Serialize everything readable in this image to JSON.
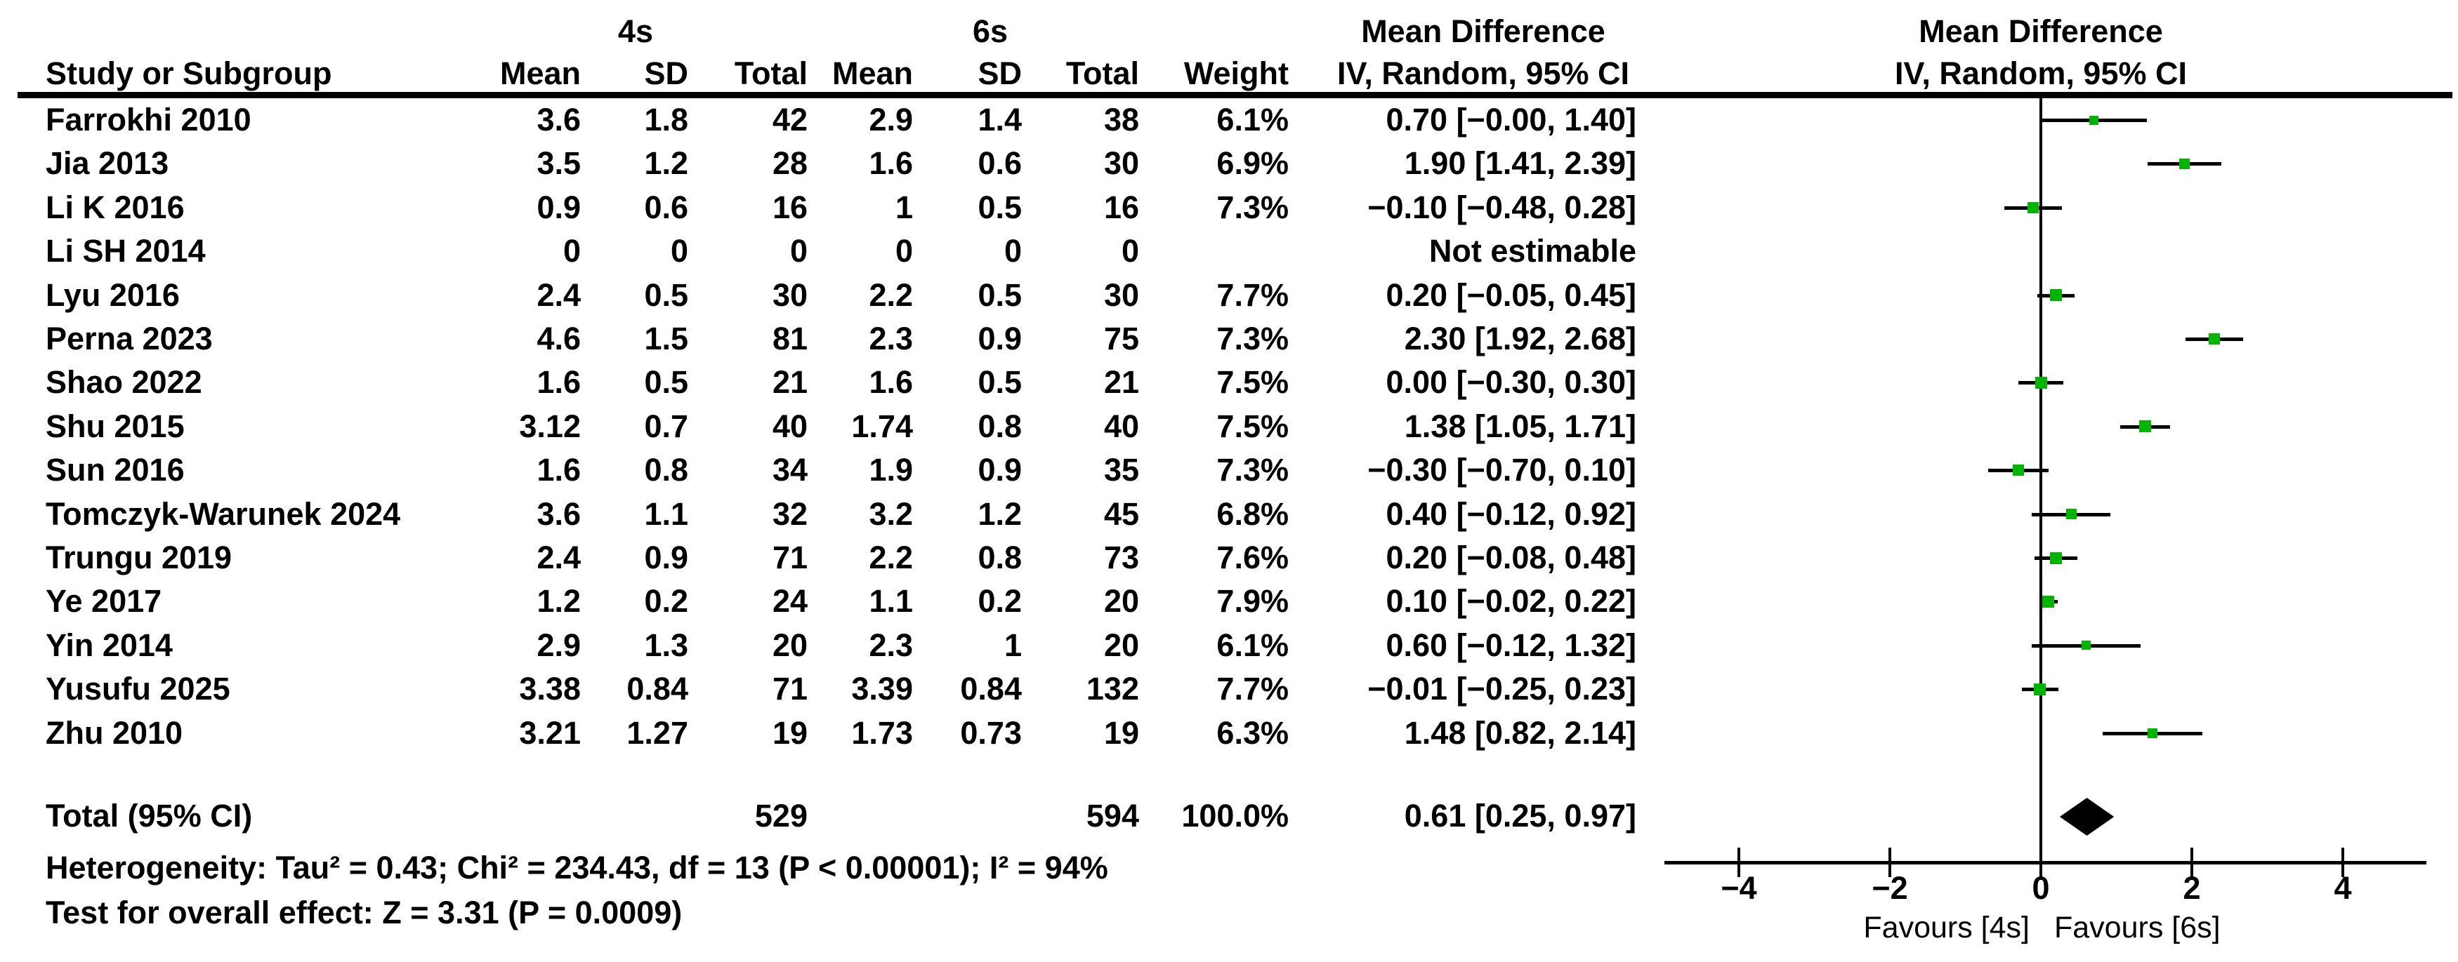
{
  "header": {
    "group1": "4s",
    "group2": "6s",
    "col_study": "Study or Subgroup",
    "col_mean": "Mean",
    "col_sd": "SD",
    "col_total": "Total",
    "col_weight": "Weight",
    "effect_title": "Mean Difference",
    "effect_subtitle": "IV, Random, 95% CI"
  },
  "chart_data": {
    "type": "scatter",
    "subtype": "forest-plot",
    "effect_measure": "Mean Difference",
    "method": "IV, Random, 95% CI",
    "studies": [
      {
        "name": "Farrokhi 2010",
        "mean_4s": "3.6",
        "sd_4s": "1.8",
        "total_4s": "42",
        "mean_6s": "2.9",
        "sd_6s": "1.4",
        "total_6s": "38",
        "weight": "6.1%",
        "weight_pct": 6.1,
        "md": 0.7,
        "ci_lo": 0.0,
        "ci_hi": 1.4,
        "ci_text": "0.70 [−0.00, 1.40]",
        "estimable": true
      },
      {
        "name": "Jia 2013",
        "mean_4s": "3.5",
        "sd_4s": "1.2",
        "total_4s": "28",
        "mean_6s": "1.6",
        "sd_6s": "0.6",
        "total_6s": "30",
        "weight": "6.9%",
        "weight_pct": 6.9,
        "md": 1.9,
        "ci_lo": 1.41,
        "ci_hi": 2.39,
        "ci_text": "1.90 [1.41, 2.39]",
        "estimable": true
      },
      {
        "name": "Li K 2016",
        "mean_4s": "0.9",
        "sd_4s": "0.6",
        "total_4s": "16",
        "mean_6s": "1",
        "sd_6s": "0.5",
        "total_6s": "16",
        "weight": "7.3%",
        "weight_pct": 7.3,
        "md": -0.1,
        "ci_lo": -0.48,
        "ci_hi": 0.28,
        "ci_text": "−0.10 [−0.48, 0.28]",
        "estimable": true
      },
      {
        "name": "Li SH 2014",
        "mean_4s": "0",
        "sd_4s": "0",
        "total_4s": "0",
        "mean_6s": "0",
        "sd_6s": "0",
        "total_6s": "0",
        "weight": "",
        "weight_pct": 0,
        "md": null,
        "ci_lo": null,
        "ci_hi": null,
        "ci_text": "Not estimable",
        "estimable": false
      },
      {
        "name": "Lyu 2016",
        "mean_4s": "2.4",
        "sd_4s": "0.5",
        "total_4s": "30",
        "mean_6s": "2.2",
        "sd_6s": "0.5",
        "total_6s": "30",
        "weight": "7.7%",
        "weight_pct": 7.7,
        "md": 0.2,
        "ci_lo": -0.05,
        "ci_hi": 0.45,
        "ci_text": "0.20 [−0.05, 0.45]",
        "estimable": true
      },
      {
        "name": "Perna 2023",
        "mean_4s": "4.6",
        "sd_4s": "1.5",
        "total_4s": "81",
        "mean_6s": "2.3",
        "sd_6s": "0.9",
        "total_6s": "75",
        "weight": "7.3%",
        "weight_pct": 7.3,
        "md": 2.3,
        "ci_lo": 1.92,
        "ci_hi": 2.68,
        "ci_text": "2.30 [1.92, 2.68]",
        "estimable": true
      },
      {
        "name": "Shao 2022",
        "mean_4s": "1.6",
        "sd_4s": "0.5",
        "total_4s": "21",
        "mean_6s": "1.6",
        "sd_6s": "0.5",
        "total_6s": "21",
        "weight": "7.5%",
        "weight_pct": 7.5,
        "md": 0.0,
        "ci_lo": -0.3,
        "ci_hi": 0.3,
        "ci_text": "0.00 [−0.30, 0.30]",
        "estimable": true
      },
      {
        "name": "Shu 2015",
        "mean_4s": "3.12",
        "sd_4s": "0.7",
        "total_4s": "40",
        "mean_6s": "1.74",
        "sd_6s": "0.8",
        "total_6s": "40",
        "weight": "7.5%",
        "weight_pct": 7.5,
        "md": 1.38,
        "ci_lo": 1.05,
        "ci_hi": 1.71,
        "ci_text": "1.38 [1.05, 1.71]",
        "estimable": true
      },
      {
        "name": "Sun 2016",
        "mean_4s": "1.6",
        "sd_4s": "0.8",
        "total_4s": "34",
        "mean_6s": "1.9",
        "sd_6s": "0.9",
        "total_6s": "35",
        "weight": "7.3%",
        "weight_pct": 7.3,
        "md": -0.3,
        "ci_lo": -0.7,
        "ci_hi": 0.1,
        "ci_text": "−0.30 [−0.70, 0.10]",
        "estimable": true
      },
      {
        "name": "Tomczyk-Warunek 2024",
        "mean_4s": "3.6",
        "sd_4s": "1.1",
        "total_4s": "32",
        "mean_6s": "3.2",
        "sd_6s": "1.2",
        "total_6s": "45",
        "weight": "6.8%",
        "weight_pct": 6.8,
        "md": 0.4,
        "ci_lo": -0.12,
        "ci_hi": 0.92,
        "ci_text": "0.40 [−0.12, 0.92]",
        "estimable": true
      },
      {
        "name": "Trungu 2019",
        "mean_4s": "2.4",
        "sd_4s": "0.9",
        "total_4s": "71",
        "mean_6s": "2.2",
        "sd_6s": "0.8",
        "total_6s": "73",
        "weight": "7.6%",
        "weight_pct": 7.6,
        "md": 0.2,
        "ci_lo": -0.08,
        "ci_hi": 0.48,
        "ci_text": "0.20 [−0.08, 0.48]",
        "estimable": true
      },
      {
        "name": "Ye 2017",
        "mean_4s": "1.2",
        "sd_4s": "0.2",
        "total_4s": "24",
        "mean_6s": "1.1",
        "sd_6s": "0.2",
        "total_6s": "20",
        "weight": "7.9%",
        "weight_pct": 7.9,
        "md": 0.1,
        "ci_lo": -0.02,
        "ci_hi": 0.22,
        "ci_text": "0.10 [−0.02, 0.22]",
        "estimable": true
      },
      {
        "name": "Yin 2014",
        "mean_4s": "2.9",
        "sd_4s": "1.3",
        "total_4s": "20",
        "mean_6s": "2.3",
        "sd_6s": "1",
        "total_6s": "20",
        "weight": "6.1%",
        "weight_pct": 6.1,
        "md": 0.6,
        "ci_lo": -0.12,
        "ci_hi": 1.32,
        "ci_text": "0.60 [−0.12, 1.32]",
        "estimable": true
      },
      {
        "name": "Yusufu 2025",
        "mean_4s": "3.38",
        "sd_4s": "0.84",
        "total_4s": "71",
        "mean_6s": "3.39",
        "sd_6s": "0.84",
        "total_6s": "132",
        "weight": "7.7%",
        "weight_pct": 7.7,
        "md": -0.01,
        "ci_lo": -0.25,
        "ci_hi": 0.23,
        "ci_text": "−0.01 [−0.25, 0.23]",
        "estimable": true
      },
      {
        "name": "Zhu 2010",
        "mean_4s": "3.21",
        "sd_4s": "1.27",
        "total_4s": "19",
        "mean_6s": "1.73",
        "sd_6s": "0.73",
        "total_6s": "19",
        "weight": "6.3%",
        "weight_pct": 6.3,
        "md": 1.48,
        "ci_lo": 0.82,
        "ci_hi": 2.14,
        "ci_text": "1.48 [0.82, 2.14]",
        "estimable": true
      }
    ],
    "total": {
      "label": "Total (95% CI)",
      "total_4s": "529",
      "total_6s": "594",
      "weight": "100.0%",
      "md": 0.61,
      "ci_lo": 0.25,
      "ci_hi": 0.97,
      "ci_text": "0.61 [0.25, 0.97]"
    },
    "heterogeneity": "Heterogeneity: Tau² = 0.43; Chi² = 234.43, df = 13 (P < 0.00001); I² = 94%",
    "overall_effect": "Test for overall effect: Z = 3.31 (P = 0.0009)",
    "x_axis": {
      "tick_values": [
        -4,
        -2,
        0,
        2,
        4
      ],
      "tick_labels": [
        "−4",
        "−2",
        "0",
        "2",
        "4"
      ],
      "range": [
        -5,
        5.1
      ],
      "favours_left": "Favours [4s]",
      "favours_right": "Favours [6s]"
    },
    "colors": {
      "marker": "#00b400",
      "diamond": "#000000",
      "line": "#000000"
    }
  }
}
